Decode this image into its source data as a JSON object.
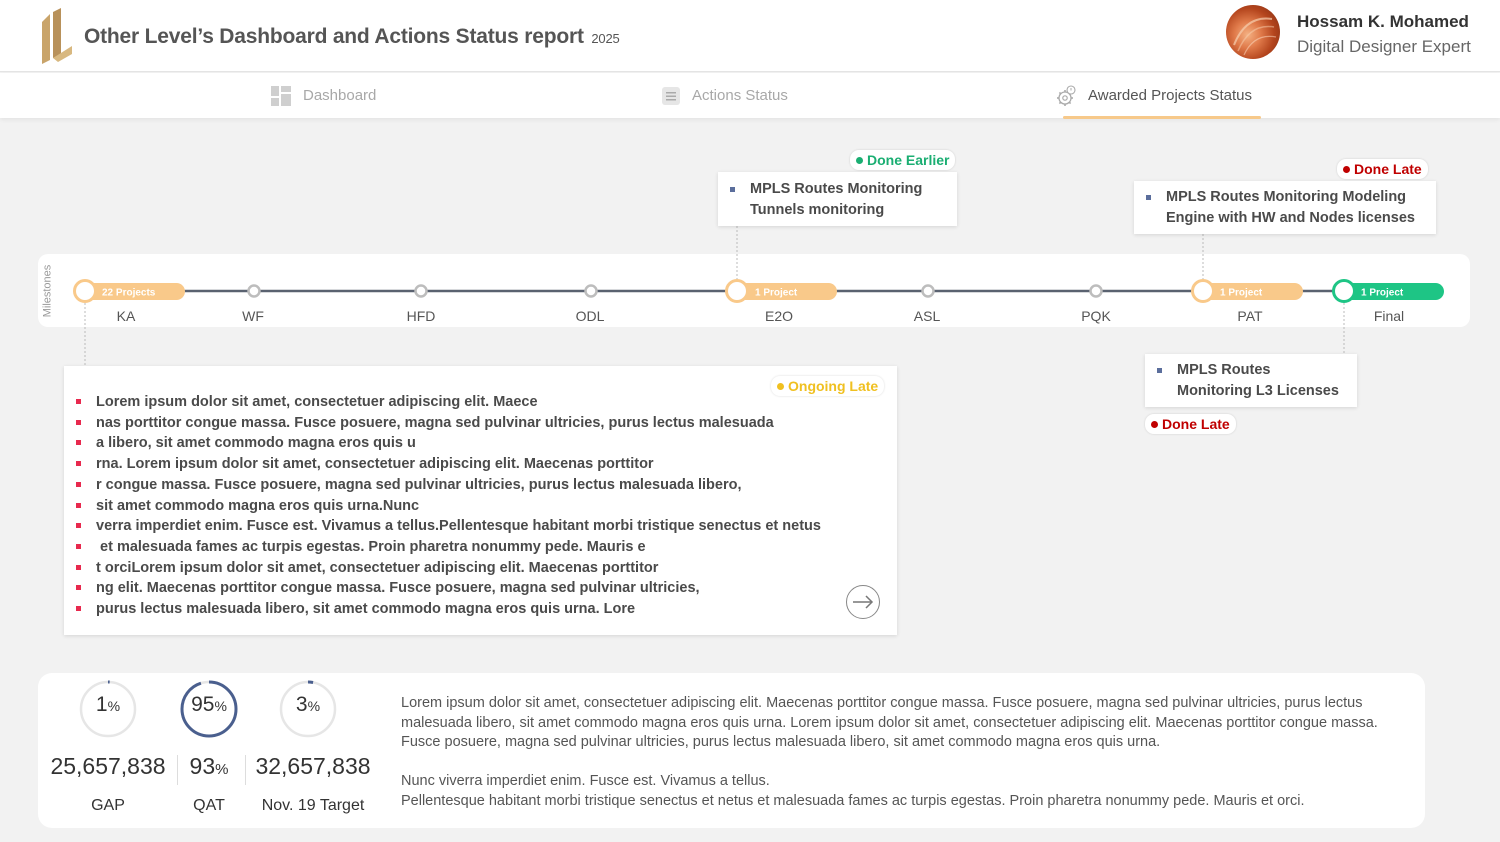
{
  "header": {
    "title": "Other Level’s Dashboard and Actions Status report",
    "year": "2025",
    "user_name": "Hossam K. Mohamed",
    "user_role": "Digital Designer Expert"
  },
  "tabs": [
    {
      "label": "Dashboard",
      "icon": "dashboard-icon",
      "active": false
    },
    {
      "label": "Actions Status",
      "icon": "list-icon",
      "active": false
    },
    {
      "label": "Awarded Projects Status",
      "icon": "gear-icon",
      "active": true
    }
  ],
  "timeline": {
    "side_label": "Milestones",
    "milestones": [
      {
        "label": "KA",
        "badge": "22 Projects"
      },
      {
        "label": "WF",
        "badge": ""
      },
      {
        "label": "HFD",
        "badge": ""
      },
      {
        "label": "ODL",
        "badge": ""
      },
      {
        "label": "E2O",
        "badge": "1 Project"
      },
      {
        "label": "ASL",
        "badge": ""
      },
      {
        "label": "PQK",
        "badge": ""
      },
      {
        "label": "PAT",
        "badge": "1 Project"
      },
      {
        "label": "Final",
        "badge": "1 Project"
      }
    ]
  },
  "callouts": {
    "e2o": {
      "status": "Done Earlier",
      "lines": [
        "MPLS Routes Monitoring Tunnels monitoring"
      ]
    },
    "pat": {
      "status": "Done Late",
      "lines": [
        "MPLS Routes Monitoring Modeling Engine with HW and Nodes licenses"
      ]
    },
    "final": {
      "status": "Done Late",
      "lines": [
        "MPLS Routes Monitoring L3 Licenses"
      ]
    }
  },
  "ka_panel": {
    "status": "Ongoing Late",
    "lines": [
      "Lorem ipsum dolor sit amet, consectetuer adipiscing elit. Maece",
      "nas porttitor congue massa. Fusce posuere, magna sed pulvinar ultricies, purus lectus malesuada",
      "a libero, sit amet commodo magna eros quis u",
      "rna. Lorem ipsum dolor sit amet, consectetuer adipiscing elit. Maecenas porttitor",
      "r congue massa. Fusce posuere, magna sed pulvinar ultricies, purus lectus malesuada libero,",
      "sit amet commodo magna eros quis urna.Nunc",
      "verra imperdiet enim. Fusce est. Vivamus a tellus.Pellentesque habitant morbi tristique senectus et netus",
      " et malesuada fames ac turpis egestas. Proin pharetra nonummy pede. Mauris e",
      "t orciLorem ipsum dolor sit amet, consectetuer adipiscing elit. Maecenas porttitor",
      "ng elit. Maecenas porttitor congue massa. Fusce posuere, magna sed pulvinar ultricies,",
      "purus lectus malesuada libero, sit amet commodo magna eros quis urna. Lore"
    ]
  },
  "kpis": [
    {
      "gauge_value": "1",
      "gauge_unit": "%",
      "percent": 1,
      "number": "25,657,838",
      "number_unit": "",
      "label": "GAP"
    },
    {
      "gauge_value": "95",
      "gauge_unit": "%",
      "percent": 95,
      "number": "93",
      "number_unit": "%",
      "label": "QAT"
    },
    {
      "gauge_value": "3",
      "gauge_unit": "%",
      "percent": 3,
      "number": "32,657,838",
      "number_unit": "",
      "label": "Nov. 19 Target"
    }
  ],
  "kpi_text": {
    "para1": "Lorem ipsum dolor sit amet, consectetuer adipiscing elit. Maecenas porttitor congue massa. Fusce posuere, magna sed pulvinar ultricies, purus lectus malesuada libero, sit amet commodo magna eros quis urna. Lorem ipsum dolor sit amet, consectetuer adipiscing elit. Maecenas porttitor congue massa. Fusce posuere, magna sed pulvinar ultricies, purus lectus malesuada libero, sit amet commodo magna eros quis urna.",
    "para2_line1": "Nunc viverra imperdiet enim. Fusce est. Vivamus a tellus.",
    "para2_line2": "Pellentesque habitant morbi tristique senectus et netus et malesuada fames ac turpis egestas. Proin pharetra nonummy pede. Mauris et orci."
  },
  "colors": {
    "accent_orange": "#f9c98a",
    "done_green": "#1aae72",
    "done_red": "#c00000",
    "ongoing_yellow": "#f0c020",
    "timeline_line": "#5a6270",
    "gauge_ring": "#4a5f8e",
    "bullet_red": "#e8294e"
  }
}
